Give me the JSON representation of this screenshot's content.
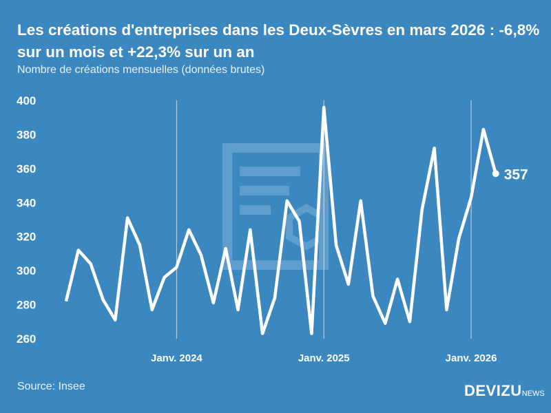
{
  "title": "Les créations d'entreprises dans les Deux-Sèvres en mars 2026 : -6,8% sur un mois et +22,3% sur un an",
  "subtitle": "Nombre de créations mensuelles (données brutes)",
  "source": "Source: Insee",
  "logo": {
    "main": "DEVIZU",
    "suffix": "NEWS"
  },
  "colors": {
    "background": "#3b88c1",
    "line": "#ffffff"
  },
  "chart_data": {
    "type": "line",
    "x_start": "2023-04",
    "x": [
      "2023-04",
      "2023-05",
      "2023-06",
      "2023-07",
      "2023-08",
      "2023-09",
      "2023-10",
      "2023-11",
      "2023-12",
      "2024-01",
      "2024-02",
      "2024-03",
      "2024-04",
      "2024-05",
      "2024-06",
      "2024-07",
      "2024-08",
      "2024-09",
      "2024-10",
      "2024-11",
      "2024-12",
      "2025-01",
      "2025-02",
      "2025-03",
      "2025-04",
      "2025-05",
      "2025-06",
      "2025-07",
      "2025-08",
      "2025-09",
      "2025-10",
      "2025-11",
      "2025-12",
      "2026-01",
      "2026-02",
      "2026-03"
    ],
    "values": [
      282,
      312,
      304,
      283,
      271,
      331,
      315,
      277,
      296,
      302,
      324,
      309,
      281,
      313,
      277,
      324,
      263,
      284,
      341,
      329,
      263,
      396,
      315,
      292,
      341,
      285,
      269,
      295,
      270,
      336,
      372,
      277,
      319,
      343,
      383,
      357
    ],
    "ylim": [
      260,
      400
    ],
    "yticks": [
      260,
      280,
      300,
      320,
      340,
      360,
      380,
      400
    ],
    "xticks": [
      {
        "at": "2024-01",
        "label": "Janv. 2024"
      },
      {
        "at": "2025-01",
        "label": "Janv. 2025"
      },
      {
        "at": "2026-01",
        "label": "Janv. 2026"
      }
    ],
    "last_label": "357",
    "grid": "vertical lines at January"
  }
}
